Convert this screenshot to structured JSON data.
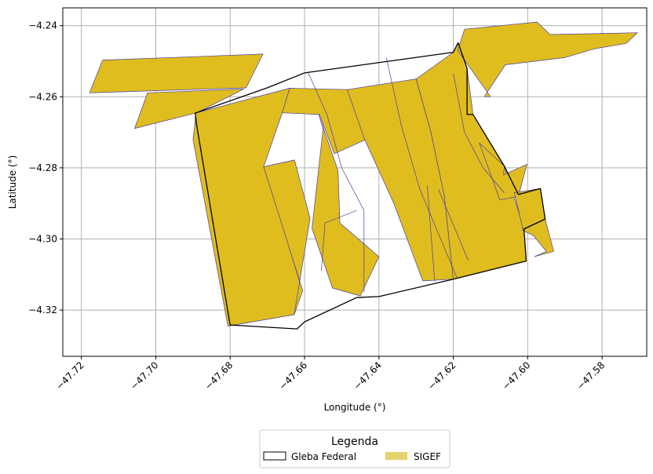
{
  "chart_data": {
    "type": "map",
    "xlabel": "Longitude (°)",
    "ylabel": "Latitude (°)",
    "xlim": [
      -47.725,
      -47.568
    ],
    "ylim": [
      -4.333,
      -4.235
    ],
    "x_ticks": [
      -47.72,
      -47.7,
      -47.68,
      -47.66,
      -47.64,
      -47.62,
      -47.6,
      -47.58
    ],
    "x_tick_labels": [
      "−47.72",
      "−47.70",
      "−47.68",
      "−47.66",
      "−47.64",
      "−47.62",
      "−47.60",
      "−47.58"
    ],
    "y_ticks": [
      -4.24,
      -4.26,
      -4.28,
      -4.3,
      -4.32
    ],
    "y_tick_labels": [
      "−4.24",
      "−4.26",
      "−4.28",
      "−4.30",
      "−4.32"
    ],
    "grid": true,
    "legend": {
      "title": "Legenda",
      "placement": "bottom-center",
      "entries": [
        {
          "label": "Gleba Federal",
          "style": "outline",
          "color": "#000000"
        },
        {
          "label": "SIGEF",
          "style": "fill",
          "color": "#e6d36e"
        }
      ]
    },
    "colors": {
      "sigef_fill": "#dfbd1f",
      "sigef_edge": "#4b3f9e",
      "gleba_edge": "#000000",
      "grid": "#b0b0b0"
    },
    "gleba_federal": [
      [
        -47.6894,
        -4.2646
      ],
      [
        -47.67,
        -4.2575
      ],
      [
        -47.66,
        -4.2533
      ],
      [
        -47.62,
        -4.2475
      ],
      [
        -47.6187,
        -4.2448
      ],
      [
        -47.6163,
        -4.252
      ],
      [
        -47.6163,
        -4.265
      ],
      [
        -47.6147,
        -4.265
      ],
      [
        -47.6063,
        -4.2795
      ],
      [
        -47.6025,
        -4.2875
      ],
      [
        -47.5966,
        -4.2858
      ],
      [
        -47.5953,
        -4.2944
      ],
      [
        -47.601,
        -4.2972
      ],
      [
        -47.6004,
        -4.3062
      ],
      [
        -47.62,
        -4.3113
      ],
      [
        -47.64,
        -4.3162
      ],
      [
        -47.646,
        -4.3165
      ],
      [
        -47.66,
        -4.3233
      ],
      [
        -47.662,
        -4.3253
      ],
      [
        -47.68,
        -4.3242
      ],
      [
        -47.689,
        -4.268
      ]
    ],
    "sigef_parcels": [
      [
        [
          -47.7178,
          -4.2589
        ],
        [
          -47.7143,
          -4.2497
        ],
        [
          -47.6712,
          -4.248
        ],
        [
          -47.6757,
          -4.2575
        ]
      ],
      [
        [
          -47.7057,
          -4.2689
        ],
        [
          -47.7022,
          -4.2589
        ],
        [
          -47.6763,
          -4.2578
        ],
        [
          -47.689,
          -4.2645
        ]
      ],
      [
        [
          -47.6893,
          -4.2646
        ],
        [
          -47.6895,
          -4.268
        ],
        [
          -47.69,
          -4.272
        ],
        [
          -47.6806,
          -4.3245
        ],
        [
          -47.6628,
          -4.3213
        ],
        [
          -47.6607,
          -4.3142
        ],
        [
          -47.668,
          -4.289
        ],
        [
          -47.671,
          -4.2797
        ],
        [
          -47.666,
          -4.2645
        ],
        [
          -47.664,
          -4.2576
        ]
      ],
      [
        [
          -47.671,
          -4.2797
        ],
        [
          -47.6627,
          -4.2778
        ],
        [
          -47.6585,
          -4.2942
        ],
        [
          -47.6628,
          -4.3213
        ],
        [
          -47.6605,
          -4.3145
        ]
      ],
      [
        [
          -47.666,
          -4.2645
        ],
        [
          -47.656,
          -4.265
        ],
        [
          -47.652,
          -4.276
        ],
        [
          -47.643,
          -4.2718
        ],
        [
          -47.648,
          -4.258
        ],
        [
          -47.664,
          -4.2576
        ]
      ],
      [
        [
          -47.6562,
          -4.265
        ],
        [
          -47.651,
          -4.2808
        ],
        [
          -47.6505,
          -4.2955
        ],
        [
          -47.64,
          -4.305
        ],
        [
          -47.645,
          -4.316
        ],
        [
          -47.6525,
          -4.3138
        ],
        [
          -47.658,
          -4.297
        ],
        [
          -47.655,
          -4.269
        ]
      ],
      [
        [
          -47.6485,
          -4.258
        ],
        [
          -47.644,
          -4.2716
        ],
        [
          -47.636,
          -4.29
        ],
        [
          -47.6282,
          -4.3118
        ],
        [
          -47.62,
          -4.3113
        ],
        [
          -47.6224,
          -4.288
        ],
        [
          -47.626,
          -4.27
        ],
        [
          -47.63,
          -4.255
        ]
      ],
      [
        [
          -47.63,
          -4.255
        ],
        [
          -47.626,
          -4.27
        ],
        [
          -47.6224,
          -4.288
        ],
        [
          -47.62,
          -4.3113
        ],
        [
          -47.6004,
          -4.3062
        ],
        [
          -47.601,
          -4.2972
        ],
        [
          -47.6063,
          -4.2795
        ],
        [
          -47.6147,
          -4.265
        ],
        [
          -47.6163,
          -4.252
        ],
        [
          -47.6187,
          -4.2448
        ],
        [
          -47.62,
          -4.2475
        ]
      ],
      [
        [
          -47.6188,
          -4.247
        ],
        [
          -47.617,
          -4.241
        ],
        [
          -47.5975,
          -4.239
        ],
        [
          -47.594,
          -4.2425
        ],
        [
          -47.5705,
          -4.242
        ],
        [
          -47.5735,
          -4.245
        ],
        [
          -47.582,
          -4.2465
        ],
        [
          -47.59,
          -4.249
        ],
        [
          -47.606,
          -4.251
        ],
        [
          -47.6117,
          -4.26
        ],
        [
          -47.61,
          -4.26
        ]
      ],
      [
        [
          -47.613,
          -4.273
        ],
        [
          -47.6063,
          -4.2795
        ],
        [
          -47.6065,
          -4.282
        ],
        [
          -47.6002,
          -4.279
        ],
        [
          -47.6025,
          -4.288
        ],
        [
          -47.6075,
          -4.289
        ]
      ],
      [
        [
          -47.6036,
          -4.287
        ],
        [
          -47.5966,
          -4.2858
        ],
        [
          -47.5953,
          -4.2944
        ],
        [
          -47.6013,
          -4.2972
        ]
      ],
      [
        [
          -47.6015,
          -4.2975
        ],
        [
          -47.5953,
          -4.2944
        ],
        [
          -47.593,
          -4.3035
        ],
        [
          -47.5982,
          -4.305
        ],
        [
          -47.595,
          -4.3035
        ],
        [
          -47.5985,
          -4.299
        ]
      ]
    ],
    "internal_lines": [
      [
        [
          -47.659,
          -4.2533
        ],
        [
          -47.654,
          -4.265
        ],
        [
          -47.65,
          -4.28
        ],
        [
          -47.644,
          -4.292
        ]
      ],
      [
        [
          -47.646,
          -4.292
        ],
        [
          -47.6545,
          -4.2955
        ],
        [
          -47.6555,
          -4.309
        ]
      ],
      [
        [
          -47.644,
          -4.292
        ],
        [
          -47.644,
          -4.315
        ]
      ],
      [
        [
          -47.638,
          -4.249
        ],
        [
          -47.634,
          -4.268
        ],
        [
          -47.629,
          -4.286
        ],
        [
          -47.619,
          -4.311
        ]
      ],
      [
        [
          -47.627,
          -4.285
        ],
        [
          -47.625,
          -4.312
        ]
      ],
      [
        [
          -47.624,
          -4.286
        ],
        [
          -47.616,
          -4.306
        ]
      ],
      [
        [
          -47.62,
          -4.2535
        ],
        [
          -47.617,
          -4.27
        ],
        [
          -47.612,
          -4.28
        ],
        [
          -47.6063,
          -4.287
        ]
      ]
    ]
  }
}
